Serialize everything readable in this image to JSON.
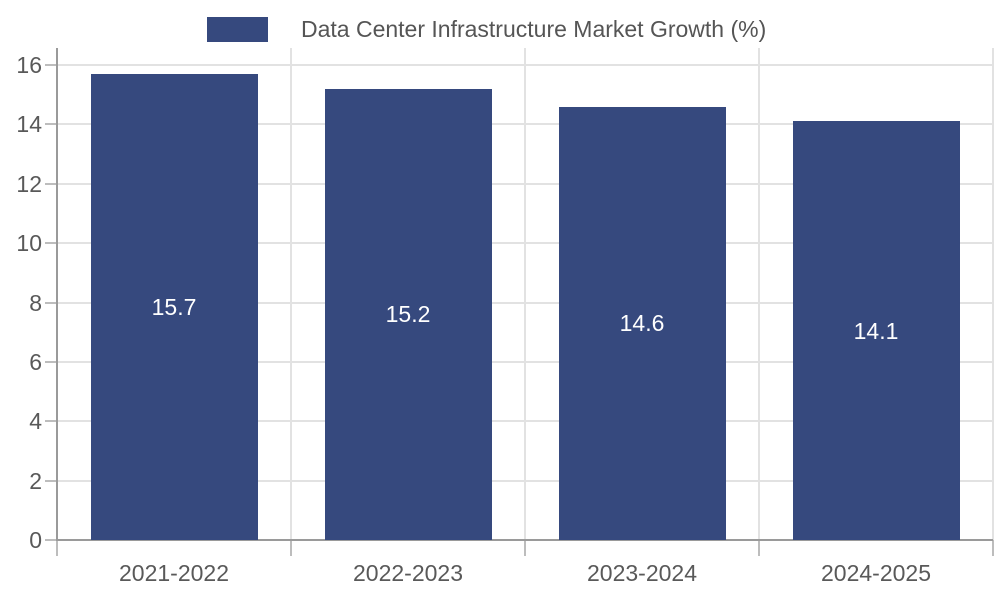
{
  "chart_data": {
    "type": "bar",
    "title": "",
    "legend": {
      "label": "Data Center Infrastructure Market Growth (%)",
      "position": "top"
    },
    "categories": [
      "2021-2022",
      "2022-2023",
      "2023-2024",
      "2024-2025"
    ],
    "values": [
      15.7,
      15.2,
      14.6,
      14.1
    ],
    "value_labels": [
      "15.7",
      "15.2",
      "14.6",
      "14.1"
    ],
    "xlabel": "",
    "ylabel": "",
    "ylim": [
      0,
      16
    ],
    "yticks": [
      0,
      2,
      4,
      6,
      8,
      10,
      12,
      14,
      16
    ],
    "grid": true,
    "colors": {
      "bar": "#36497e",
      "value_label": "#ffffff",
      "axis_line": "#9a9a9a",
      "tick_mark": "#bdbdbd",
      "gridline": "#e2e2e2",
      "tick_label": "#595959",
      "legend_text": "#555555",
      "background": "#ffffff"
    }
  }
}
